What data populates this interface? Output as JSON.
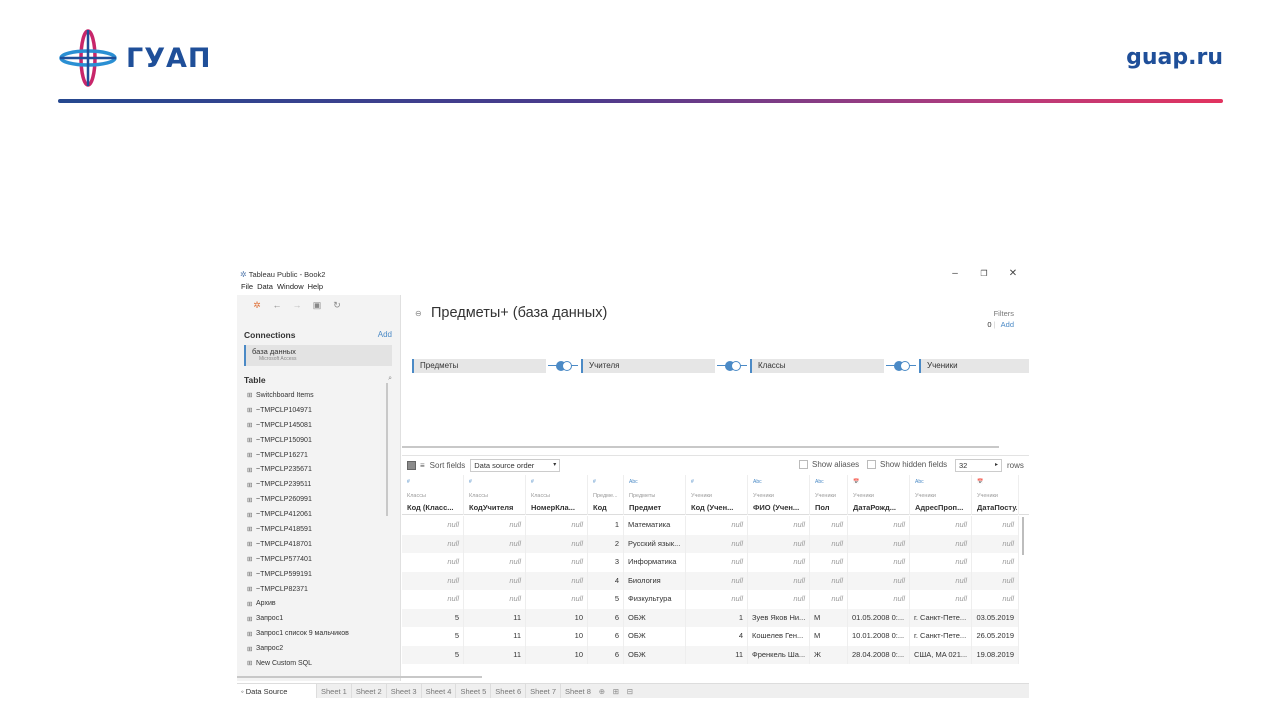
{
  "slide": {
    "logo_text": "ГУАП",
    "site": "guap.ru"
  },
  "window": {
    "title": "Tableau Public - Book2",
    "menu": [
      "File",
      "Data",
      "Window",
      "Help"
    ]
  },
  "left_pane": {
    "connections_title": "Connections",
    "connections_add": "Add",
    "connection_name": "база данных",
    "connection_type": "Microsoft Access",
    "table_title": "Table",
    "tables": [
      "Switchboard Items",
      "~TMPCLP104971",
      "~TMPCLP145081",
      "~TMPCLP150901",
      "~TMPCLP16271",
      "~TMPCLP235671",
      "~TMPCLP239511",
      "~TMPCLP260991",
      "~TMPCLP412061",
      "~TMPCLP418591",
      "~TMPCLP418701",
      "~TMPCLP577401",
      "~TMPCLP599191",
      "~TMPCLP82371",
      "Архив",
      "Запрос1",
      "Запрос1 список 9 мальчиков",
      "Запрос2"
    ],
    "new_custom_sql": "New Custom SQL"
  },
  "canvas": {
    "datasource_title": "Предметы+ (база данных)",
    "filters_label": "Filters",
    "filters_count": "0",
    "filters_add": "Add",
    "joined_tables": [
      "Предметы",
      "Учителя",
      "Классы",
      "Ученики"
    ]
  },
  "grid_toolbar": {
    "sort_label": "Sort fields",
    "sort_value": "Data source order",
    "show_aliases": "Show aliases",
    "show_hidden": "Show hidden fields",
    "rows_value": "32",
    "rows_label": "rows"
  },
  "grid": {
    "columns": [
      {
        "type": "#",
        "source": "Классы",
        "name": "Код (Класс..."
      },
      {
        "type": "#",
        "source": "Классы",
        "name": "КодУчителя"
      },
      {
        "type": "#",
        "source": "Классы",
        "name": "НомерКла..."
      },
      {
        "type": "#",
        "source": "Предме...",
        "name": "Код"
      },
      {
        "type": "Abc",
        "source": "Предметы",
        "name": "Предмет"
      },
      {
        "type": "#",
        "source": "Ученики",
        "name": "Код (Учен..."
      },
      {
        "type": "Abc",
        "source": "Ученики",
        "name": "ФИО (Учен..."
      },
      {
        "type": "Abc",
        "source": "Ученики",
        "name": "Пол"
      },
      {
        "type": "📅",
        "source": "Ученики",
        "name": "ДатаРожд..."
      },
      {
        "type": "Abc",
        "source": "Ученики",
        "name": "АдресПроп..."
      },
      {
        "type": "📅",
        "source": "Ученики",
        "name": "ДатаПосту..."
      }
    ],
    "rows": [
      [
        "null",
        "null",
        "null",
        "1",
        "Математика",
        "null",
        "null",
        "null",
        "null",
        "null",
        "null"
      ],
      [
        "null",
        "null",
        "null",
        "2",
        "Русский язык...",
        "null",
        "null",
        "null",
        "null",
        "null",
        "null"
      ],
      [
        "null",
        "null",
        "null",
        "3",
        "Информатика",
        "null",
        "null",
        "null",
        "null",
        "null",
        "null"
      ],
      [
        "null",
        "null",
        "null",
        "4",
        "Биология",
        "null",
        "null",
        "null",
        "null",
        "null",
        "null"
      ],
      [
        "null",
        "null",
        "null",
        "5",
        "Физкультура",
        "null",
        "null",
        "null",
        "null",
        "null",
        "null"
      ],
      [
        "5",
        "11",
        "10",
        "6",
        "ОБЖ",
        "1",
        "Зуев Яков Ни...",
        "М",
        "01.05.2008 0:...",
        "г. Санкт-Пете...",
        "03.05.2019"
      ],
      [
        "5",
        "11",
        "10",
        "6",
        "ОБЖ",
        "4",
        "Кошелев Ген...",
        "М",
        "10.01.2008 0:...",
        "г. Санкт-Пете...",
        "26.05.2019"
      ],
      [
        "5",
        "11",
        "10",
        "6",
        "ОБЖ",
        "11",
        "Френкель Ша...",
        "Ж",
        "28.04.2008 0:...",
        "США, MA 021...",
        "19.08.2019"
      ]
    ]
  },
  "tabs": {
    "data_source": "Data Source",
    "sheets": [
      "Sheet 1",
      "Sheet 2",
      "Sheet 3",
      "Sheet 4",
      "Sheet 5",
      "Sheet 6",
      "Sheet 7",
      "Sheet 8"
    ]
  }
}
